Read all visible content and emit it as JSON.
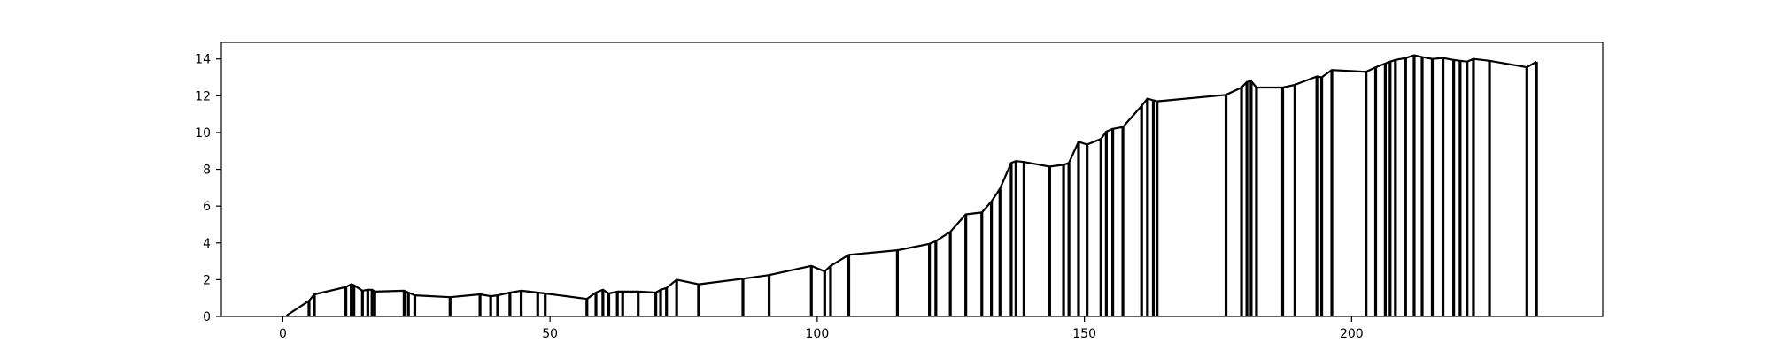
{
  "chart_data": {
    "type": "line",
    "title": "",
    "xlabel": "",
    "ylabel": "",
    "xlim": [
      -11.5,
      247
    ],
    "ylim": [
      0,
      14.9
    ],
    "xticks": [
      0,
      50,
      100,
      150,
      200
    ],
    "xtick_labels": [
      "0",
      "50",
      "100",
      "150",
      "200"
    ],
    "yticks": [
      0,
      2,
      4,
      6,
      8,
      10,
      12,
      14
    ],
    "ytick_labels": [
      "0",
      "2",
      "4",
      "6",
      "8",
      "10",
      "12",
      "14"
    ],
    "grid": false,
    "line_color": "#000000",
    "x": [
      0.7,
      4.9,
      5.9,
      11.8,
      12.8,
      13.3,
      14.9,
      15.9,
      16.7,
      17.2,
      22.7,
      23.5,
      24.7,
      31.3,
      36.9,
      38.9,
      40.2,
      42.5,
      44.6,
      47.7,
      49.1,
      56.9,
      58.6,
      59.9,
      61.0,
      62.6,
      63.6,
      66.5,
      69.8,
      70.7,
      71.8,
      73.7,
      77.8,
      86.1,
      91.0,
      98.9,
      101.4,
      102.5,
      105.9,
      115.0,
      121.0,
      122.2,
      124.9,
      127.8,
      130.8,
      132.6,
      134.2,
      136.3,
      137.2,
      138.7,
      143.5,
      146.1,
      147.1,
      148.9,
      150.5,
      153.1,
      154.1,
      155.3,
      157.2,
      160.7,
      161.8,
      162.9,
      163.6,
      176.5,
      179.4,
      180.4,
      181.2,
      182.2,
      187.1,
      189.4,
      193.5,
      194.4,
      196.3,
      202.7,
      204.5,
      206.3,
      207.2,
      208.2,
      210.1,
      211.7,
      213.2,
      215.1,
      217.1,
      219.1,
      220.3,
      221.6,
      222.8,
      225.8,
      232.8,
      234.6
    ],
    "y": [
      0.05,
      0.85,
      1.2,
      1.6,
      1.75,
      1.7,
      1.4,
      1.45,
      1.45,
      1.35,
      1.4,
      1.3,
      1.15,
      1.05,
      1.2,
      1.1,
      1.15,
      1.3,
      1.4,
      1.3,
      1.25,
      0.95,
      1.3,
      1.45,
      1.25,
      1.35,
      1.35,
      1.35,
      1.3,
      1.45,
      1.55,
      2.0,
      1.75,
      2.05,
      2.25,
      2.75,
      2.45,
      2.75,
      3.35,
      3.6,
      3.95,
      4.1,
      4.6,
      5.55,
      5.65,
      6.25,
      6.95,
      8.35,
      8.45,
      8.4,
      8.15,
      8.25,
      8.35,
      9.5,
      9.35,
      9.65,
      10.05,
      10.2,
      10.3,
      11.45,
      11.85,
      11.75,
      11.7,
      12.05,
      12.45,
      12.75,
      12.8,
      12.45,
      12.45,
      12.6,
      13.05,
      13.0,
      13.4,
      13.3,
      13.55,
      13.75,
      13.85,
      13.95,
      14.05,
      14.2,
      14.1,
      14.0,
      14.05,
      13.95,
      13.9,
      13.85,
      14.0,
      13.9,
      13.55,
      13.85
    ]
  }
}
